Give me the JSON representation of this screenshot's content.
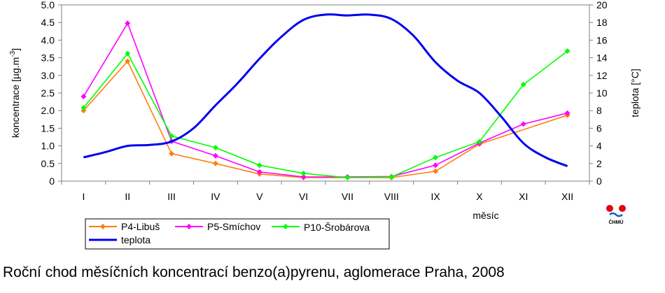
{
  "caption": "Roční chod měsíčních koncentrací benzo(a)pyrenu, aglomerace Praha, 2008",
  "logo": {
    "text": "ČHMÚ",
    "colors": [
      "#e30613",
      "#1560bd"
    ]
  },
  "chart_data": {
    "type": "line",
    "categories": [
      "I",
      "II",
      "III",
      "IV",
      "V",
      "VI",
      "VII",
      "VIII",
      "IX",
      "X",
      "XI",
      "XII"
    ],
    "xlabel": "měsíc",
    "ylabel": "koncentrace [µg.m",
    "ylabel_sup": "-3",
    "ylabel_end": "]",
    "y2label": "teplota [°C]",
    "ylim": [
      0,
      5.0
    ],
    "y2lim": [
      0,
      20
    ],
    "yticks": [
      "0",
      "0.5",
      "1.0",
      "1.5",
      "2.0",
      "2.5",
      "3.0",
      "3.5",
      "4.0",
      "4.5",
      "5.0"
    ],
    "y2ticks": [
      "0",
      "2",
      "4",
      "6",
      "8",
      "10",
      "12",
      "14",
      "16",
      "18",
      "20"
    ],
    "legend_position": "bottom-left",
    "series": [
      {
        "name": "P4-Libuš",
        "axis": "left",
        "color": "#ff7f0e",
        "marker": "diamond",
        "values": [
          2.0,
          3.4,
          0.78,
          0.5,
          0.2,
          0.1,
          0.1,
          0.1,
          0.28,
          1.05,
          null,
          1.87
        ]
      },
      {
        "name": "P5-Smíchov",
        "axis": "left",
        "color": "#ff00ff",
        "marker": "diamond",
        "values": [
          2.4,
          4.48,
          1.13,
          0.72,
          0.26,
          0.12,
          0.12,
          0.13,
          0.45,
          1.08,
          1.62,
          1.93
        ]
      },
      {
        "name": "P10-Šrobárova",
        "axis": "left",
        "color": "#00ff00",
        "marker": "diamond",
        "values": [
          2.08,
          3.62,
          1.28,
          0.95,
          0.45,
          0.22,
          0.1,
          0.12,
          0.67,
          1.12,
          2.74,
          3.69
        ]
      },
      {
        "name": "teplota",
        "axis": "right",
        "color": "#0000ee",
        "marker": "none",
        "smooth": true,
        "x": [
          1,
          1.5,
          2,
          2.5,
          3,
          3.5,
          4,
          4.5,
          5,
          5.5,
          6,
          6.5,
          7,
          7.5,
          8,
          8.5,
          9,
          9.5,
          10,
          10.5,
          11,
          11.5,
          12
        ],
        "values": [
          2.7,
          3.3,
          4.0,
          4.1,
          4.5,
          6.0,
          8.6,
          11.1,
          13.9,
          16.4,
          18.3,
          18.9,
          18.8,
          18.9,
          18.4,
          16.5,
          13.5,
          11.4,
          10.0,
          7.3,
          4.3,
          2.7,
          1.7
        ]
      }
    ]
  }
}
